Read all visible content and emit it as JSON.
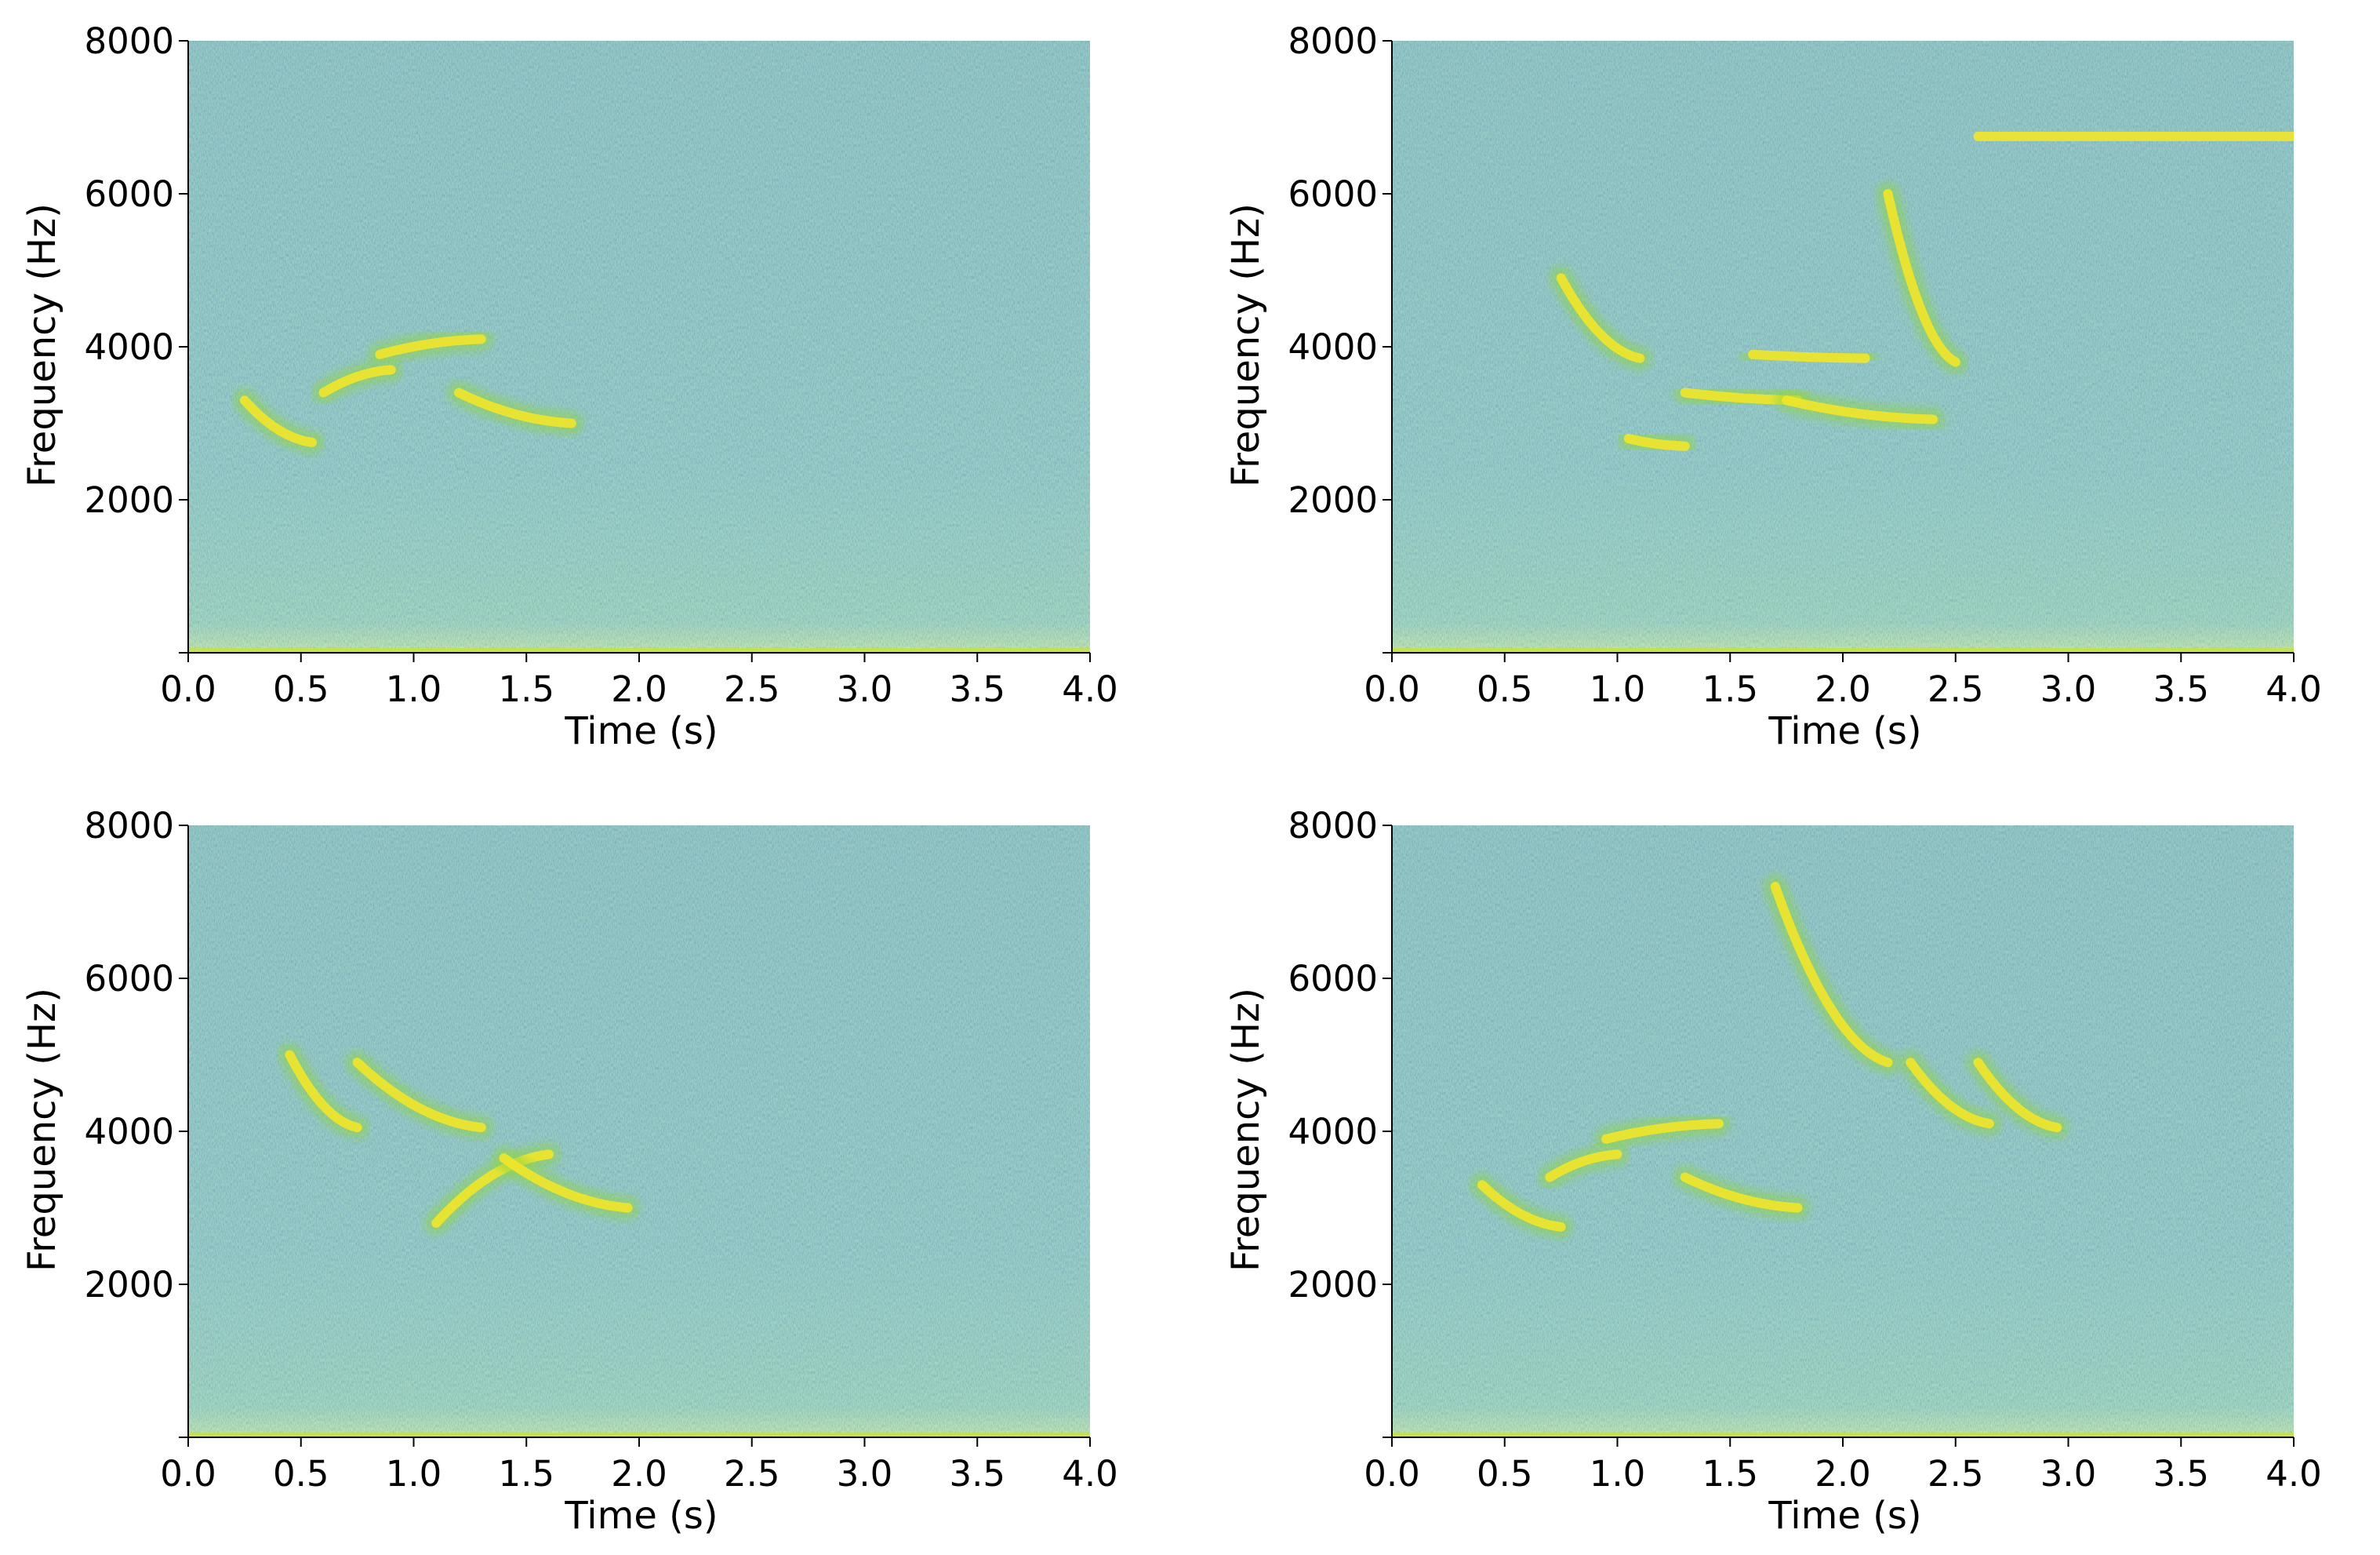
{
  "figure": {
    "panels": [
      {
        "id": "top-left",
        "xlabel": "Time (s)",
        "ylabel": "Frequency (Hz)"
      },
      {
        "id": "top-right",
        "xlabel": "Time (s)",
        "ylabel": "Frequency (Hz)"
      },
      {
        "id": "bottom-left",
        "xlabel": "Time (s)",
        "ylabel": "Frequency (Hz)"
      },
      {
        "id": "bottom-right",
        "xlabel": "Time (s)",
        "ylabel": "Frequency (Hz)"
      }
    ]
  },
  "chart_data": [
    {
      "type": "heatmap",
      "xlabel": "Time (s)",
      "ylabel": "Frequency (Hz)",
      "xlim": [
        0,
        4
      ],
      "ylim": [
        0,
        8000
      ],
      "xticks": [
        "0.0",
        "0.5",
        "1.0",
        "1.5",
        "2.0",
        "2.5",
        "3.0",
        "3.5",
        "4.0"
      ],
      "yticks": [
        "2000",
        "4000",
        "6000",
        "8000"
      ],
      "colormap": "viridis",
      "background_color": "#1f8f8a",
      "features": [
        {
          "t": [
            0.25,
            0.55
          ],
          "f": [
            3300,
            2750
          ]
        },
        {
          "t": [
            0.6,
            0.9
          ],
          "f": [
            3400,
            3700
          ]
        },
        {
          "t": [
            0.85,
            1.3
          ],
          "f": [
            3900,
            4100
          ]
        },
        {
          "t": [
            1.2,
            1.7
          ],
          "f": [
            3400,
            3000
          ]
        }
      ]
    },
    {
      "type": "heatmap",
      "xlabel": "Time (s)",
      "ylabel": "Frequency (Hz)",
      "xlim": [
        0,
        4
      ],
      "ylim": [
        0,
        8000
      ],
      "xticks": [
        "0.0",
        "0.5",
        "1.0",
        "1.5",
        "2.0",
        "2.5",
        "3.0",
        "3.5",
        "4.0"
      ],
      "yticks": [
        "2000",
        "4000",
        "6000",
        "8000"
      ],
      "colormap": "viridis",
      "background_color": "#1f8f8a",
      "features": [
        {
          "t": [
            0.75,
            1.1
          ],
          "f": [
            4900,
            3850
          ]
        },
        {
          "t": [
            1.05,
            1.3
          ],
          "f": [
            2800,
            2700
          ]
        },
        {
          "t": [
            1.3,
            1.8
          ],
          "f": [
            3400,
            3300
          ]
        },
        {
          "t": [
            1.6,
            2.1
          ],
          "f": [
            3900,
            3850
          ]
        },
        {
          "t": [
            1.75,
            2.4
          ],
          "f": [
            3300,
            3050
          ]
        },
        {
          "t": [
            2.2,
            2.5
          ],
          "f": [
            6000,
            3800
          ]
        },
        {
          "t": [
            2.6,
            4.0
          ],
          "f": [
            6750,
            6750
          ]
        }
      ]
    },
    {
      "type": "heatmap",
      "xlabel": "Time (s)",
      "ylabel": "Frequency (Hz)",
      "xlim": [
        0,
        4
      ],
      "ylim": [
        0,
        8000
      ],
      "xticks": [
        "0.0",
        "0.5",
        "1.0",
        "1.5",
        "2.0",
        "2.5",
        "3.0",
        "3.5",
        "4.0"
      ],
      "yticks": [
        "2000",
        "4000",
        "6000",
        "8000"
      ],
      "colormap": "viridis",
      "background_color": "#1f8f8a",
      "features": [
        {
          "t": [
            0.45,
            0.75
          ],
          "f": [
            5000,
            4050
          ]
        },
        {
          "t": [
            0.75,
            1.3
          ],
          "f": [
            4900,
            4050
          ]
        },
        {
          "t": [
            1.1,
            1.6
          ],
          "f": [
            2800,
            3700
          ]
        },
        {
          "t": [
            1.4,
            1.95
          ],
          "f": [
            3650,
            3000
          ]
        }
      ]
    },
    {
      "type": "heatmap",
      "xlabel": "Time (s)",
      "ylabel": "Frequency (Hz)",
      "xlim": [
        0,
        4
      ],
      "ylim": [
        0,
        8000
      ],
      "xticks": [
        "0.0",
        "0.5",
        "1.0",
        "1.5",
        "2.0",
        "2.5",
        "3.0",
        "3.5",
        "4.0"
      ],
      "yticks": [
        "2000",
        "4000",
        "6000",
        "8000"
      ],
      "colormap": "viridis",
      "background_color": "#1f8f8a",
      "features": [
        {
          "t": [
            0.4,
            0.75
          ],
          "f": [
            3300,
            2750
          ]
        },
        {
          "t": [
            0.7,
            1.0
          ],
          "f": [
            3400,
            3700
          ]
        },
        {
          "t": [
            0.95,
            1.45
          ],
          "f": [
            3900,
            4100
          ]
        },
        {
          "t": [
            1.3,
            1.8
          ],
          "f": [
            3400,
            3000
          ]
        },
        {
          "t": [
            1.7,
            2.2
          ],
          "f": [
            7200,
            4900
          ]
        },
        {
          "t": [
            2.3,
            2.65
          ],
          "f": [
            4900,
            4100
          ]
        },
        {
          "t": [
            2.6,
            2.95
          ],
          "f": [
            4900,
            4050
          ]
        }
      ]
    }
  ]
}
